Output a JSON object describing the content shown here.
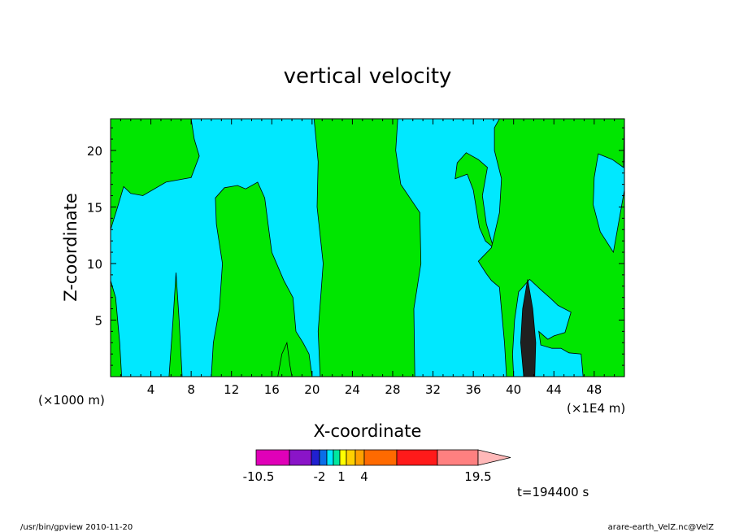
{
  "chart_data": {
    "type": "heatmap",
    "title": "vertical velocity",
    "xlabel": "X-coordinate",
    "ylabel": "Z-coordinate",
    "x_unit_left": "(×1000 m)",
    "x_unit_right": "(×1E4 m)",
    "xlim": [
      0,
      51
    ],
    "ylim": [
      0,
      22.8
    ],
    "x_ticks": [
      "4",
      "8",
      "12",
      "16",
      "20",
      "24",
      "28",
      "32",
      "36",
      "40",
      "44",
      "48"
    ],
    "y_ticks": [
      "5",
      "10",
      "15",
      "20"
    ],
    "time_label": "t=194400 s",
    "colorbar": {
      "tick_labels": [
        "-10.5",
        "-2",
        "1",
        "4",
        "19.5"
      ],
      "colors": [
        "#e000b8",
        "#8a14c8",
        "#2020d0",
        "#0a6ee8",
        "#00e8ff",
        "#00e8a0",
        "#ffff00",
        "#ffd000",
        "#ffa000",
        "#ff6a00",
        "#ff1a1a",
        "#ff8080",
        "#ffb8b8"
      ]
    },
    "field_colors": {
      "background": "#00e8ff",
      "positive": "#00e600",
      "strong_positive": "#202020"
    },
    "regions": [
      {
        "name": "green-left-top",
        "color": "positive",
        "points": [
          [
            0,
            22.8
          ],
          [
            8,
            22.8
          ],
          [
            8.3,
            21
          ],
          [
            8.8,
            19.5
          ],
          [
            8,
            17.6
          ],
          [
            5.5,
            17.2
          ],
          [
            3.2,
            16
          ],
          [
            2,
            16.2
          ],
          [
            1.3,
            16.8
          ],
          [
            0.7,
            15
          ],
          [
            0,
            13
          ]
        ]
      },
      {
        "name": "green-left-strip",
        "color": "positive",
        "points": [
          [
            0,
            8.5
          ],
          [
            0.5,
            7
          ],
          [
            0.9,
            3
          ],
          [
            1.1,
            0
          ],
          [
            0,
            0
          ]
        ]
      },
      {
        "name": "green-spike-6",
        "color": "positive",
        "points": [
          [
            5.8,
            0
          ],
          [
            6.2,
            5
          ],
          [
            6.5,
            9.2
          ],
          [
            6.8,
            5
          ],
          [
            7.1,
            0
          ]
        ]
      },
      {
        "name": "green-band-14",
        "color": "positive",
        "points": [
          [
            10,
            0
          ],
          [
            10.2,
            3
          ],
          [
            10.8,
            6
          ],
          [
            11.1,
            10
          ],
          [
            10.5,
            13.5
          ],
          [
            10.4,
            15.8
          ],
          [
            11.3,
            16.7
          ],
          [
            12.6,
            16.9
          ],
          [
            13.4,
            16.6
          ],
          [
            14.6,
            17.2
          ],
          [
            15.3,
            15.8
          ],
          [
            15.7,
            13
          ],
          [
            16,
            11
          ],
          [
            17.2,
            8.5
          ],
          [
            18.1,
            7
          ],
          [
            18.4,
            4
          ],
          [
            19.1,
            3
          ],
          [
            19.7,
            2
          ],
          [
            20,
            0
          ]
        ]
      },
      {
        "name": "green-spike-18",
        "color": "positive",
        "points": [
          [
            16.6,
            0
          ],
          [
            17,
            2
          ],
          [
            17.5,
            3
          ],
          [
            17.8,
            1
          ],
          [
            18,
            0
          ]
        ]
      },
      {
        "name": "green-band-25",
        "color": "positive",
        "points": [
          [
            20.8,
            0
          ],
          [
            20.6,
            4
          ],
          [
            21.1,
            10
          ],
          [
            20.5,
            15
          ],
          [
            20.6,
            19
          ],
          [
            20.2,
            22.8
          ],
          [
            28.5,
            22.8
          ],
          [
            28.3,
            20
          ],
          [
            28.8,
            17
          ],
          [
            30.7,
            14.5
          ],
          [
            30.8,
            10
          ],
          [
            30.1,
            6
          ],
          [
            30.2,
            0
          ]
        ]
      },
      {
        "name": "green-band-36",
        "color": "positive",
        "points": [
          [
            34.2,
            17.5
          ],
          [
            35.4,
            17.9
          ],
          [
            36,
            16.5
          ],
          [
            36.6,
            13.2
          ],
          [
            37.2,
            12
          ],
          [
            38,
            11.4
          ],
          [
            37.3,
            13.5
          ],
          [
            36.9,
            16
          ],
          [
            37.4,
            18.5
          ],
          [
            36.5,
            19.2
          ],
          [
            35.3,
            19.8
          ],
          [
            34.4,
            18.9
          ]
        ]
      },
      {
        "name": "green-band-40",
        "color": "positive",
        "points": [
          [
            38.6,
            22.8
          ],
          [
            51,
            22.8
          ],
          [
            50.9,
            18.5
          ],
          [
            49.8,
            19.2
          ],
          [
            48.4,
            19.7
          ],
          [
            48,
            17.6
          ],
          [
            47.9,
            15.2
          ],
          [
            48.6,
            12.8
          ],
          [
            49.9,
            11
          ],
          [
            51,
            16.5
          ],
          [
            51,
            0
          ],
          [
            46.9,
            0
          ],
          [
            46.7,
            2
          ],
          [
            45.5,
            2.1
          ],
          [
            44.7,
            2.5
          ],
          [
            43.8,
            2.5
          ],
          [
            42.7,
            2.8
          ],
          [
            42.5,
            4
          ],
          [
            43.4,
            3.3
          ],
          [
            44,
            3.6
          ],
          [
            45.1,
            3.9
          ],
          [
            45.7,
            5.7
          ],
          [
            44.4,
            6.3
          ],
          [
            43.7,
            6.9
          ],
          [
            42.8,
            7.6
          ],
          [
            41.6,
            8.6
          ],
          [
            40.5,
            7.5
          ],
          [
            40.1,
            5
          ],
          [
            39.9,
            2
          ],
          [
            40,
            0
          ],
          [
            39.3,
            0
          ],
          [
            39.1,
            3
          ],
          [
            38.6,
            7.9
          ],
          [
            37.8,
            8.5
          ],
          [
            37.3,
            9.1
          ],
          [
            36.5,
            10.2
          ],
          [
            37.8,
            11.4
          ],
          [
            38.6,
            14.5
          ],
          [
            38.8,
            17.5
          ],
          [
            38.1,
            20
          ],
          [
            38.1,
            22
          ]
        ]
      },
      {
        "name": "black-core-41",
        "color": "strong_positive",
        "points": [
          [
            41,
            0
          ],
          [
            40.7,
            3
          ],
          [
            40.9,
            6
          ],
          [
            41.4,
            8.6
          ],
          [
            41.9,
            6
          ],
          [
            42.2,
            3
          ],
          [
            42.1,
            0
          ]
        ]
      }
    ]
  },
  "footer": {
    "left": "/usr/bin/gpview   2010-11-20",
    "right": "arare-earth_VelZ.nc@VelZ"
  }
}
